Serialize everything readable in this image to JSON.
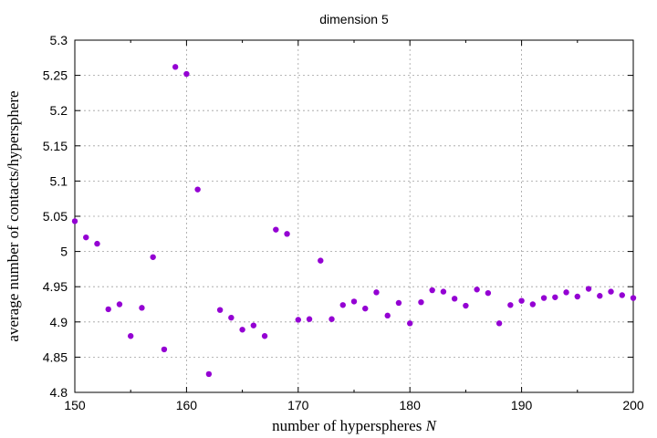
{
  "chart_data": {
    "type": "scatter",
    "title": "dimension 5",
    "xlabel": "number of hyperspheres",
    "xlabel_var": "N",
    "ylabel": "average number of contacts/hypersphere",
    "xlim": [
      150,
      200
    ],
    "ylim": [
      4.8,
      5.3
    ],
    "xticks": [
      "150",
      "160",
      "170",
      "180",
      "190",
      "200"
    ],
    "yticks": [
      "4.8",
      "4.85",
      "4.9",
      "4.95",
      "5",
      "5.05",
      "5.1",
      "5.15",
      "5.2",
      "5.25",
      "5.3"
    ],
    "grid": true,
    "marker_color": "#9400d3",
    "series": [
      {
        "x": [
          150,
          151,
          152,
          153,
          154,
          155,
          156,
          157,
          158,
          159,
          160,
          161,
          162,
          163,
          164,
          165,
          166,
          167,
          168,
          169,
          170,
          171,
          172,
          173,
          174,
          175,
          176,
          177,
          178,
          179,
          180,
          181,
          182,
          183,
          184,
          185,
          186,
          187,
          188,
          189,
          190,
          191,
          192,
          193,
          194,
          195,
          196,
          197,
          198,
          199,
          200
        ],
        "y": [
          5.043,
          5.02,
          5.011,
          4.918,
          4.925,
          4.88,
          4.92,
          4.992,
          4.861,
          5.262,
          5.252,
          5.088,
          4.826,
          4.917,
          4.906,
          4.889,
          4.895,
          4.88,
          5.031,
          5.025,
          4.903,
          4.904,
          4.987,
          4.904,
          4.924,
          4.929,
          4.919,
          4.942,
          4.909,
          4.927,
          4.898,
          4.928,
          4.945,
          4.943,
          4.933,
          4.923,
          4.946,
          4.941,
          4.898,
          4.924,
          4.93,
          4.925,
          4.934,
          4.935,
          4.942,
          4.936,
          4.947,
          4.937,
          4.943,
          4.938,
          4.934
        ]
      }
    ]
  }
}
